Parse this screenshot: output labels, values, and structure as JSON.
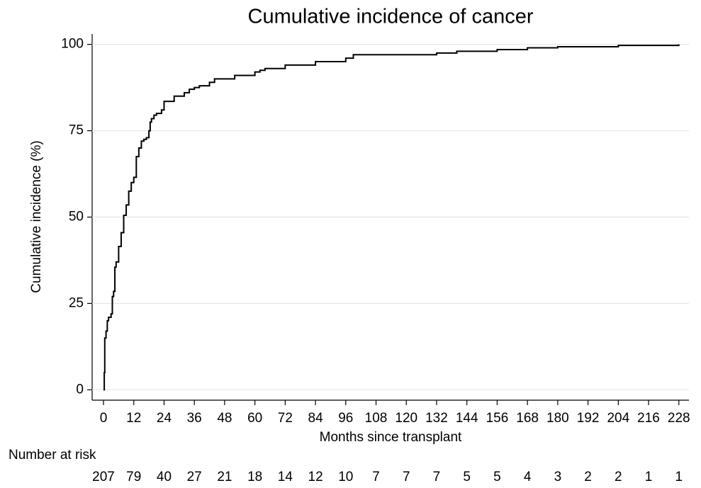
{
  "chart_data": {
    "type": "step",
    "title": "Cumulative incidence of cancer",
    "xlabel": "Months since transplant",
    "ylabel": "Cumulative incidence (%)",
    "x": [
      0,
      0.3,
      0.5,
      1,
      1.5,
      2,
      3,
      3.5,
      4,
      4.5,
      5,
      6,
      7,
      8,
      9,
      10,
      11,
      12,
      13,
      14,
      15,
      16,
      17,
      18,
      18.5,
      19,
      20,
      21,
      23,
      24,
      28,
      32,
      34,
      36,
      38,
      42,
      44,
      52,
      60,
      62,
      64,
      72,
      84,
      96,
      99,
      132,
      140,
      156,
      168,
      180,
      204,
      228
    ],
    "series": [
      {
        "name": "Cumulative incidence",
        "color": "#000000",
        "values": [
          0,
          5,
          15,
          17,
          20,
          21,
          22,
          27,
          28.5,
          35.5,
          37,
          41.5,
          45.5,
          50.5,
          53.5,
          57.5,
          60,
          61.5,
          67.5,
          70,
          72,
          72.5,
          73,
          75,
          77.5,
          78.5,
          79.5,
          80,
          81,
          83.5,
          85,
          86,
          87,
          87.5,
          88,
          89,
          90,
          91,
          92,
          92.5,
          93,
          94,
          95,
          96,
          97,
          97.5,
          98,
          98.5,
          99,
          99.3,
          99.7,
          100
        ]
      }
    ],
    "xlim": [
      -4.5,
      232
    ],
    "ylim": [
      -3,
      103
    ],
    "xticks": [
      0,
      12,
      24,
      36,
      48,
      60,
      72,
      84,
      96,
      108,
      120,
      132,
      144,
      156,
      168,
      180,
      192,
      204,
      216,
      228
    ],
    "yticks": [
      0,
      25,
      50,
      75,
      100
    ],
    "grid": true,
    "risk_table": {
      "label": "Number at risk",
      "values": [
        207,
        79,
        40,
        27,
        21,
        18,
        14,
        12,
        10,
        7,
        7,
        7,
        5,
        5,
        4,
        3,
        2,
        2,
        1,
        1
      ]
    }
  }
}
